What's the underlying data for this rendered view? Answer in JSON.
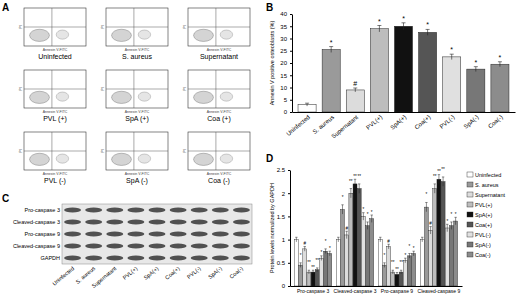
{
  "chart_data": [
    {
      "type": "bar",
      "y_label": "Annexin V positive osteoblasts (%)",
      "categories": [
        "Uninfected",
        "S. aureus",
        "Supernatant",
        "PVL(+)",
        "SpA(+)",
        "Coa(+)",
        "PVL(-)",
        "SpA(-)",
        "Coa(-)"
      ],
      "values": [
        3,
        25.5,
        9,
        34,
        35,
        32.5,
        22.5,
        17.5,
        19.5
      ],
      "errors": [
        0.6,
        1.2,
        0.8,
        1.3,
        1.4,
        1.2,
        1.1,
        1,
        1
      ],
      "annotations": [
        null,
        "*",
        "#",
        "*",
        "*",
        "*",
        "*",
        "*",
        "*"
      ],
      "colors": [
        "#ffffff",
        "#9a9a9a",
        "#dcdcdc",
        "#bdbdbd",
        "#111111",
        "#555555",
        "#e0e0e0",
        "#777777",
        "#8c8c8c"
      ],
      "ylim": [
        0,
        40
      ],
      "yticks": [
        0,
        5,
        10,
        15,
        20,
        25,
        30,
        35,
        40
      ]
    },
    {
      "type": "bar",
      "y_label": "Protein levels normalized by GAPDH",
      "categories": [
        "Pro-caspase 3",
        "Cleaved-caspase 3",
        "Pro-caspase 9",
        "Cleaved-caspase 9"
      ],
      "series": [
        {
          "name": "Uninfected",
          "color": "#ffffff",
          "values": [
            1,
            1,
            1,
            1
          ],
          "errors": [
            0.05,
            0.05,
            0.05,
            0.05
          ],
          "annotations": [
            null,
            null,
            null,
            null
          ]
        },
        {
          "name": "S. aureus",
          "color": "#9a9a9a",
          "values": [
            0.45,
            1.65,
            0.45,
            1.7
          ],
          "errors": [
            0.05,
            0.1,
            0.05,
            0.1
          ],
          "annotations": [
            "*",
            "*",
            "*",
            "*"
          ]
        },
        {
          "name": "Supernatant",
          "color": "#dcdcdc",
          "values": [
            0.8,
            1.1,
            0.85,
            1.2
          ],
          "errors": [
            0.05,
            0.08,
            0.05,
            0.08
          ],
          "annotations": [
            "#",
            "#",
            "#",
            "#"
          ]
        },
        {
          "name": "PVL(+)",
          "color": "#bdbdbd",
          "values": [
            0.3,
            2.0,
            0.3,
            2.1
          ],
          "errors": [
            0.04,
            0.1,
            0.04,
            0.1
          ],
          "annotations": [
            "**",
            "**",
            "**",
            "**"
          ]
        },
        {
          "name": "SpA(+)",
          "color": "#111111",
          "values": [
            0.3,
            2.2,
            0.25,
            2.3
          ],
          "errors": [
            0.04,
            0.1,
            0.04,
            0.1
          ],
          "annotations": [
            "**",
            "**",
            "**",
            "**"
          ]
        },
        {
          "name": "Coa(+)",
          "color": "#555555",
          "values": [
            0.35,
            2.1,
            0.3,
            2.25
          ],
          "errors": [
            0.04,
            0.1,
            0.04,
            0.1
          ],
          "annotations": [
            "**",
            "**",
            "**",
            "**"
          ]
        },
        {
          "name": "PVL(-)",
          "color": "#e0e0e0",
          "values": [
            0.6,
            1.5,
            0.55,
            1.25
          ],
          "errors": [
            0.05,
            0.08,
            0.05,
            0.08
          ],
          "annotations": [
            "*",
            "*",
            "*",
            "*"
          ]
        },
        {
          "name": "SpA(-)",
          "color": "#777777",
          "values": [
            0.75,
            1.3,
            0.65,
            1.3
          ],
          "errors": [
            0.05,
            0.08,
            0.05,
            0.08
          ],
          "annotations": [
            "*",
            "*",
            "*",
            "*"
          ]
        },
        {
          "name": "Coa(-)",
          "color": "#8c8c8c",
          "values": [
            0.7,
            1.45,
            0.7,
            1.4
          ],
          "errors": [
            0.05,
            0.08,
            0.05,
            0.08
          ],
          "annotations": [
            "*",
            "*",
            "*",
            "*"
          ]
        }
      ],
      "ylim": [
        0,
        2.5
      ],
      "yticks": [
        0,
        0.5,
        1,
        1.5,
        2,
        2.5
      ],
      "legend": "right"
    }
  ],
  "figure": {
    "panel_labels": [
      "A",
      "B",
      "C",
      "D"
    ],
    "flow": {
      "x_label": "Annexin V-FITC",
      "y_label": "PI",
      "plots": [
        "Uninfected",
        "S. aureus",
        "Supernatant",
        "PVL (+)",
        "SpA (+)",
        "Coa (+)",
        "PVL (-)",
        "SpA (-)",
        "Coa (-)"
      ]
    },
    "blot": {
      "rows": [
        "Pro-caspase 3",
        "Cleaved-caspase 3",
        "Pro-caspase 9",
        "Cleaved-caspase 9",
        "GAPDH"
      ],
      "lanes": [
        "Uninfected",
        "S. aureus",
        "Supernatant",
        "PVL(+)",
        "SpA(+)",
        "Coa(+)",
        "PVL(-)",
        "SpA(-)",
        "Coa(-)"
      ]
    }
  }
}
